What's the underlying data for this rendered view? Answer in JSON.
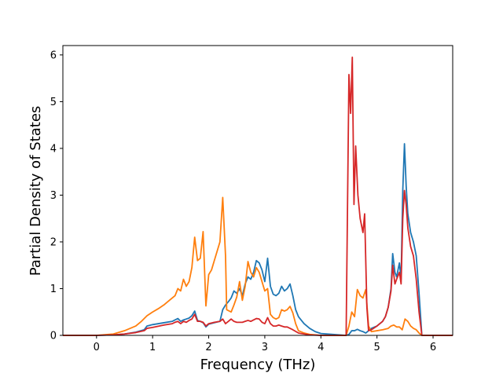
{
  "chart_data": {
    "type": "line",
    "title": "",
    "xlabel": "Frequency (THz)",
    "ylabel": "Partial Density of States",
    "xlim": [
      -0.6,
      6.35
    ],
    "ylim": [
      0,
      6.2
    ],
    "xticks": [
      0,
      1,
      2,
      3,
      4,
      5,
      6
    ],
    "yticks": [
      0,
      1,
      2,
      3,
      4,
      5,
      6
    ],
    "grid": false,
    "series": [
      {
        "color": "#1f77b4",
        "points": [
          [
            -0.6,
            0
          ],
          [
            0,
            0
          ],
          [
            0.3,
            0.01
          ],
          [
            0.5,
            0.03
          ],
          [
            0.7,
            0.07
          ],
          [
            0.85,
            0.12
          ],
          [
            0.9,
            0.2
          ],
          [
            1.0,
            0.23
          ],
          [
            1.2,
            0.27
          ],
          [
            1.35,
            0.3
          ],
          [
            1.4,
            0.33
          ],
          [
            1.45,
            0.36
          ],
          [
            1.5,
            0.3
          ],
          [
            1.55,
            0.33
          ],
          [
            1.6,
            0.35
          ],
          [
            1.65,
            0.37
          ],
          [
            1.7,
            0.42
          ],
          [
            1.75,
            0.52
          ],
          [
            1.8,
            0.32
          ],
          [
            1.85,
            0.3
          ],
          [
            1.9,
            0.27
          ],
          [
            1.95,
            0.18
          ],
          [
            2.0,
            0.24
          ],
          [
            2.1,
            0.27
          ],
          [
            2.2,
            0.3
          ],
          [
            2.25,
            0.55
          ],
          [
            2.3,
            0.65
          ],
          [
            2.35,
            0.72
          ],
          [
            2.4,
            0.8
          ],
          [
            2.45,
            0.95
          ],
          [
            2.5,
            0.9
          ],
          [
            2.55,
            1.0
          ],
          [
            2.6,
            0.85
          ],
          [
            2.65,
            1.1
          ],
          [
            2.7,
            1.25
          ],
          [
            2.75,
            1.2
          ],
          [
            2.8,
            1.35
          ],
          [
            2.85,
            1.6
          ],
          [
            2.9,
            1.55
          ],
          [
            2.95,
            1.4
          ],
          [
            3.0,
            1.15
          ],
          [
            3.05,
            1.65
          ],
          [
            3.1,
            1.05
          ],
          [
            3.15,
            0.88
          ],
          [
            3.2,
            0.85
          ],
          [
            3.25,
            0.9
          ],
          [
            3.3,
            1.05
          ],
          [
            3.35,
            0.95
          ],
          [
            3.4,
            1.0
          ],
          [
            3.45,
            1.1
          ],
          [
            3.5,
            0.85
          ],
          [
            3.55,
            0.55
          ],
          [
            3.6,
            0.4
          ],
          [
            3.7,
            0.25
          ],
          [
            3.8,
            0.15
          ],
          [
            3.9,
            0.08
          ],
          [
            4.0,
            0.04
          ],
          [
            4.45,
            0.0
          ],
          [
            4.5,
            0.02
          ],
          [
            4.55,
            0.1
          ],
          [
            4.6,
            0.1
          ],
          [
            4.65,
            0.13
          ],
          [
            4.7,
            0.1
          ],
          [
            4.75,
            0.08
          ],
          [
            4.8,
            0.05
          ],
          [
            4.85,
            0.1
          ],
          [
            4.9,
            0.15
          ],
          [
            5.0,
            0.2
          ],
          [
            5.1,
            0.3
          ],
          [
            5.15,
            0.4
          ],
          [
            5.2,
            0.6
          ],
          [
            5.25,
            1.0
          ],
          [
            5.28,
            1.75
          ],
          [
            5.32,
            1.35
          ],
          [
            5.35,
            1.25
          ],
          [
            5.4,
            1.55
          ],
          [
            5.43,
            1.2
          ],
          [
            5.46,
            3.1
          ],
          [
            5.49,
            4.1
          ],
          [
            5.52,
            3.2
          ],
          [
            5.55,
            2.6
          ],
          [
            5.6,
            2.2
          ],
          [
            5.65,
            2.0
          ],
          [
            5.7,
            1.7
          ],
          [
            5.75,
            0.9
          ],
          [
            5.8,
            0.0
          ],
          [
            6.35,
            0.0
          ]
        ]
      },
      {
        "color": "#ff7f0e",
        "points": [
          [
            -0.6,
            0
          ],
          [
            0,
            0
          ],
          [
            0.3,
            0.03
          ],
          [
            0.5,
            0.1
          ],
          [
            0.7,
            0.2
          ],
          [
            0.8,
            0.3
          ],
          [
            0.9,
            0.42
          ],
          [
            1.0,
            0.5
          ],
          [
            1.1,
            0.57
          ],
          [
            1.2,
            0.65
          ],
          [
            1.3,
            0.75
          ],
          [
            1.4,
            0.85
          ],
          [
            1.45,
            1.0
          ],
          [
            1.5,
            0.95
          ],
          [
            1.55,
            1.2
          ],
          [
            1.6,
            1.05
          ],
          [
            1.65,
            1.15
          ],
          [
            1.7,
            1.45
          ],
          [
            1.75,
            2.1
          ],
          [
            1.8,
            1.6
          ],
          [
            1.85,
            1.65
          ],
          [
            1.9,
            2.22
          ],
          [
            1.95,
            0.63
          ],
          [
            2.0,
            1.3
          ],
          [
            2.05,
            1.4
          ],
          [
            2.1,
            1.6
          ],
          [
            2.15,
            1.8
          ],
          [
            2.2,
            2.0
          ],
          [
            2.25,
            2.95
          ],
          [
            2.3,
            1.7
          ],
          [
            2.32,
            0.55
          ],
          [
            2.4,
            0.5
          ],
          [
            2.45,
            0.65
          ],
          [
            2.5,
            0.82
          ],
          [
            2.55,
            1.15
          ],
          [
            2.6,
            0.75
          ],
          [
            2.65,
            1.05
          ],
          [
            2.7,
            1.58
          ],
          [
            2.75,
            1.35
          ],
          [
            2.8,
            1.25
          ],
          [
            2.85,
            1.45
          ],
          [
            2.9,
            1.35
          ],
          [
            2.95,
            1.15
          ],
          [
            3.0,
            0.95
          ],
          [
            3.05,
            1.0
          ],
          [
            3.1,
            0.45
          ],
          [
            3.15,
            0.38
          ],
          [
            3.2,
            0.35
          ],
          [
            3.25,
            0.38
          ],
          [
            3.3,
            0.55
          ],
          [
            3.35,
            0.52
          ],
          [
            3.4,
            0.55
          ],
          [
            3.45,
            0.62
          ],
          [
            3.5,
            0.48
          ],
          [
            3.55,
            0.25
          ],
          [
            3.6,
            0.1
          ],
          [
            3.7,
            0.05
          ],
          [
            3.8,
            0.02
          ],
          [
            4.0,
            0.0
          ],
          [
            4.45,
            0.0
          ],
          [
            4.5,
            0.2
          ],
          [
            4.55,
            0.5
          ],
          [
            4.6,
            0.4
          ],
          [
            4.65,
            0.98
          ],
          [
            4.7,
            0.85
          ],
          [
            4.75,
            0.8
          ],
          [
            4.8,
            0.98
          ],
          [
            4.85,
            0.2
          ],
          [
            4.9,
            0.08
          ],
          [
            5.0,
            0.1
          ],
          [
            5.1,
            0.12
          ],
          [
            5.2,
            0.15
          ],
          [
            5.25,
            0.2
          ],
          [
            5.3,
            0.22
          ],
          [
            5.35,
            0.18
          ],
          [
            5.4,
            0.18
          ],
          [
            5.45,
            0.12
          ],
          [
            5.5,
            0.35
          ],
          [
            5.55,
            0.3
          ],
          [
            5.6,
            0.2
          ],
          [
            5.65,
            0.15
          ],
          [
            5.7,
            0.12
          ],
          [
            5.75,
            0.05
          ],
          [
            5.8,
            0.0
          ],
          [
            6.35,
            0.0
          ]
        ]
      },
      {
        "color": "#d62728",
        "points": [
          [
            -0.6,
            0
          ],
          [
            0,
            0
          ],
          [
            0.3,
            0.01
          ],
          [
            0.5,
            0.03
          ],
          [
            0.7,
            0.06
          ],
          [
            0.85,
            0.1
          ],
          [
            0.9,
            0.15
          ],
          [
            1.0,
            0.17
          ],
          [
            1.2,
            0.22
          ],
          [
            1.35,
            0.25
          ],
          [
            1.4,
            0.28
          ],
          [
            1.45,
            0.3
          ],
          [
            1.5,
            0.25
          ],
          [
            1.55,
            0.3
          ],
          [
            1.6,
            0.28
          ],
          [
            1.65,
            0.32
          ],
          [
            1.7,
            0.35
          ],
          [
            1.75,
            0.45
          ],
          [
            1.8,
            0.3
          ],
          [
            1.85,
            0.3
          ],
          [
            1.9,
            0.28
          ],
          [
            1.95,
            0.2
          ],
          [
            2.0,
            0.25
          ],
          [
            2.1,
            0.28
          ],
          [
            2.2,
            0.3
          ],
          [
            2.25,
            0.35
          ],
          [
            2.3,
            0.25
          ],
          [
            2.35,
            0.3
          ],
          [
            2.4,
            0.35
          ],
          [
            2.45,
            0.3
          ],
          [
            2.5,
            0.28
          ],
          [
            2.6,
            0.28
          ],
          [
            2.65,
            0.3
          ],
          [
            2.7,
            0.32
          ],
          [
            2.75,
            0.3
          ],
          [
            2.8,
            0.33
          ],
          [
            2.85,
            0.36
          ],
          [
            2.9,
            0.35
          ],
          [
            2.95,
            0.28
          ],
          [
            3.0,
            0.25
          ],
          [
            3.05,
            0.38
          ],
          [
            3.1,
            0.25
          ],
          [
            3.15,
            0.2
          ],
          [
            3.2,
            0.2
          ],
          [
            3.25,
            0.22
          ],
          [
            3.3,
            0.2
          ],
          [
            3.35,
            0.18
          ],
          [
            3.4,
            0.18
          ],
          [
            3.45,
            0.15
          ],
          [
            3.5,
            0.12
          ],
          [
            3.6,
            0.05
          ],
          [
            3.8,
            0.01
          ],
          [
            4.0,
            0.0
          ],
          [
            4.45,
            0.0
          ],
          [
            4.5,
            5.58
          ],
          [
            4.53,
            4.75
          ],
          [
            4.56,
            5.95
          ],
          [
            4.59,
            2.8
          ],
          [
            4.62,
            4.05
          ],
          [
            4.66,
            3.0
          ],
          [
            4.7,
            2.5
          ],
          [
            4.75,
            2.2
          ],
          [
            4.78,
            2.6
          ],
          [
            4.82,
            0.6
          ],
          [
            4.85,
            0.1
          ],
          [
            4.9,
            0.12
          ],
          [
            5.0,
            0.2
          ],
          [
            5.1,
            0.3
          ],
          [
            5.15,
            0.4
          ],
          [
            5.2,
            0.6
          ],
          [
            5.25,
            0.95
          ],
          [
            5.28,
            1.5
          ],
          [
            5.32,
            1.1
          ],
          [
            5.35,
            1.2
          ],
          [
            5.4,
            1.35
          ],
          [
            5.43,
            1.1
          ],
          [
            5.46,
            2.5
          ],
          [
            5.49,
            3.1
          ],
          [
            5.52,
            2.8
          ],
          [
            5.55,
            2.3
          ],
          [
            5.6,
            1.9
          ],
          [
            5.65,
            1.7
          ],
          [
            5.7,
            1.2
          ],
          [
            5.75,
            0.5
          ],
          [
            5.8,
            0.0
          ],
          [
            6.35,
            0.0
          ]
        ]
      }
    ]
  }
}
